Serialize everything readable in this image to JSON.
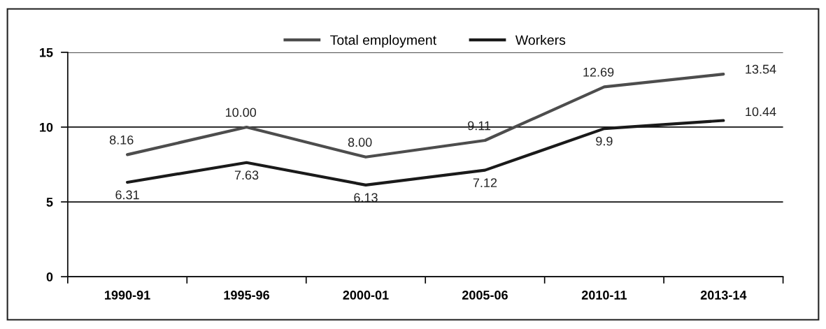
{
  "chart_data": {
    "type": "line",
    "categories": [
      "1990-91",
      "1995-96",
      "2000-01",
      "2005-06",
      "2010-11",
      "2013-14"
    ],
    "series": [
      {
        "name": "Total employment",
        "color": "#4d4d4d",
        "values": [
          8.16,
          10.0,
          8.0,
          9.11,
          12.69,
          13.54
        ],
        "value_labels": [
          "8.16",
          "10.00",
          "8.00",
          "9.11",
          "12.69",
          "13.54"
        ]
      },
      {
        "name": "Workers",
        "color": "#1a1a1a",
        "values": [
          6.31,
          7.63,
          6.13,
          7.12,
          9.9,
          10.44
        ],
        "value_labels": [
          "6.31",
          "7.63",
          "6.13",
          "7.12",
          "9.9",
          "10.44"
        ]
      }
    ],
    "ylim": [
      0,
      15
    ],
    "yticks": [
      0,
      5,
      10,
      15
    ],
    "grid": "y",
    "legend": "top",
    "marker": "none",
    "line_style": "solid"
  }
}
